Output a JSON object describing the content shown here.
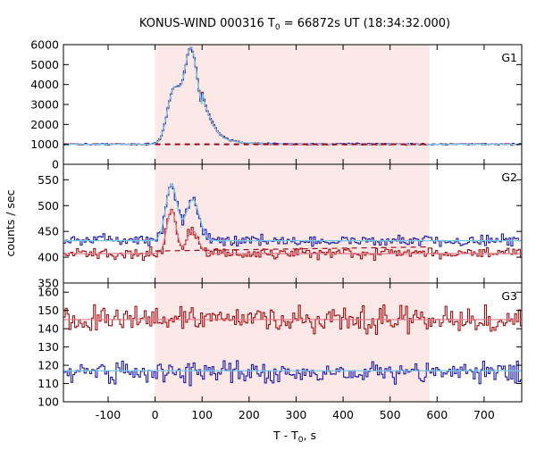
{
  "chart_data": {
    "type": "line",
    "title_parts": {
      "prefix": "KONUS-WIND 000316 T",
      "sub": "0",
      "suffix": " = 66872s UT (18:34:32.000)"
    },
    "xlabel_parts": {
      "prefix": "T - T",
      "sub": "0",
      "suffix": ", s"
    },
    "ylabel": "counts / sec",
    "xlim": [
      -195,
      780
    ],
    "xticks": [
      -100,
      0,
      100,
      200,
      300,
      400,
      500,
      600,
      700
    ],
    "shaded_interval": [
      0,
      584
    ],
    "colors": {
      "shade": "#fde8e8",
      "red": "#a01010",
      "blue": "#1a1aa8",
      "cyan_fit": "#78c8e8",
      "pink_fit": "#e07a8a",
      "background_dash": "#9a0a20",
      "frame": "#000000"
    },
    "panels": [
      {
        "label": "G1",
        "ylim": [
          0,
          6000
        ],
        "yticks": [
          0,
          1000,
          2000,
          3000,
          4000,
          5000,
          6000
        ],
        "background_level": 1000,
        "baseline": 1000,
        "peaks": [
          {
            "t": 40,
            "amp": 2700,
            "width": 14
          },
          {
            "t": 75,
            "amp": 3900,
            "width": 13
          },
          {
            "t": 95,
            "amp": 1300,
            "width": 22
          }
        ],
        "tail": {
          "start": 100,
          "amp": 800,
          "decay": 40
        }
      },
      {
        "label": "G2",
        "ylim": [
          350,
          580
        ],
        "yticks": [
          350,
          400,
          450,
          500,
          550
        ],
        "red_baseline": 407,
        "blue_baseline": 432,
        "background_level": 412,
        "red_peaks": [
          {
            "t": 35,
            "amp": 85,
            "width": 10
          },
          {
            "t": 80,
            "amp": 45,
            "width": 12
          }
        ],
        "blue_peaks": [
          {
            "t": 35,
            "amp": 110,
            "width": 12
          },
          {
            "t": 80,
            "amp": 80,
            "width": 14
          }
        ]
      },
      {
        "label": "G3",
        "ylim": [
          100,
          165
        ],
        "yticks": [
          100,
          110,
          120,
          130,
          140,
          150,
          160
        ],
        "red_baseline": 145,
        "blue_baseline": 116,
        "red_fit_level": 145,
        "blue_fit_level": 117
      }
    ]
  }
}
